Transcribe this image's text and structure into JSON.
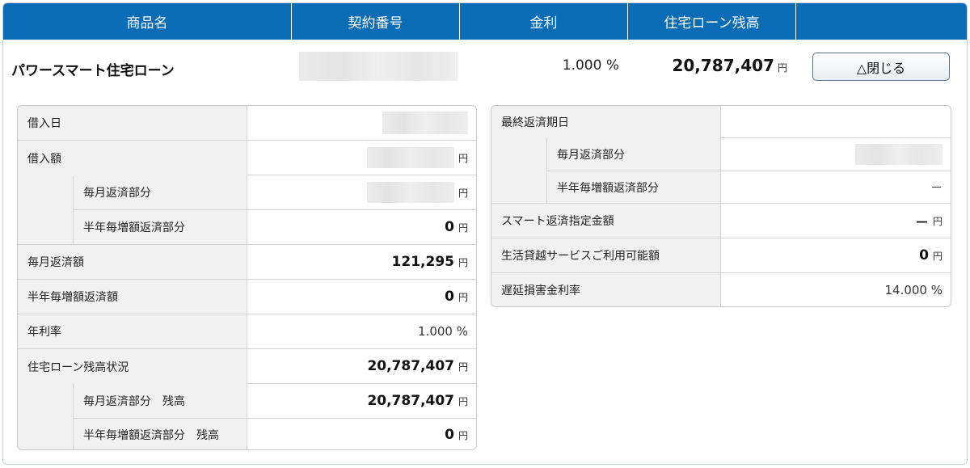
{
  "header": {
    "col_product": "商品名",
    "col_contract": "契約番号",
    "col_interest": "金利",
    "col_balance": "住宅ローン残高",
    "col_action": ""
  },
  "summary": {
    "product_name": "パワースマート住宅ローン",
    "interest_rate": "1.000 %",
    "balance": "20,787,407",
    "balance_unit": "円",
    "close_button": "△閉じる"
  },
  "left_table": {
    "borrow_date_label": "借入日",
    "borrow_amount_label": "借入額",
    "borrow_amount_unit": "円",
    "monthly_part_label": "毎月返済部分",
    "monthly_part_unit": "円",
    "semiannual_part_label": "半年毎増額返済部分",
    "semiannual_part_value": "0",
    "semiannual_part_unit": "円",
    "monthly_payment_label": "毎月返済額",
    "monthly_payment_value": "121,295",
    "monthly_payment_unit": "円",
    "semiannual_payment_label": "半年毎増額返済額",
    "semiannual_payment_value": "0",
    "semiannual_payment_unit": "円",
    "annual_rate_label": "年利率",
    "annual_rate_value": "1.000 %",
    "loan_status_label": "住宅ローン残高状況",
    "loan_status_value": "20,787,407",
    "loan_status_unit": "円",
    "monthly_balance_label": "毎月返済部分　残高",
    "monthly_balance_value": "20,787,407",
    "monthly_balance_unit": "円",
    "semiannual_balance_label": "半年毎増額返済部分　残高",
    "semiannual_balance_value": "0",
    "semiannual_balance_unit": "円"
  },
  "right_table": {
    "final_date_label": "最終返済期日",
    "monthly_part_label": "毎月返済部分",
    "semiannual_part_label": "半年毎増額返済部分",
    "semiannual_part_value": "－",
    "smart_amount_label": "スマート返済指定金額",
    "smart_amount_value": "－",
    "smart_amount_unit": "円",
    "overdraft_label": "生活貸越サービスご利用可能額",
    "overdraft_value": "0",
    "overdraft_unit": "円",
    "late_rate_label": "遅延損害金利率",
    "late_rate_value": "14.000 %"
  },
  "colors": {
    "header_bg": "#0a6cb4",
    "label_bg": "#f1f1f1"
  }
}
